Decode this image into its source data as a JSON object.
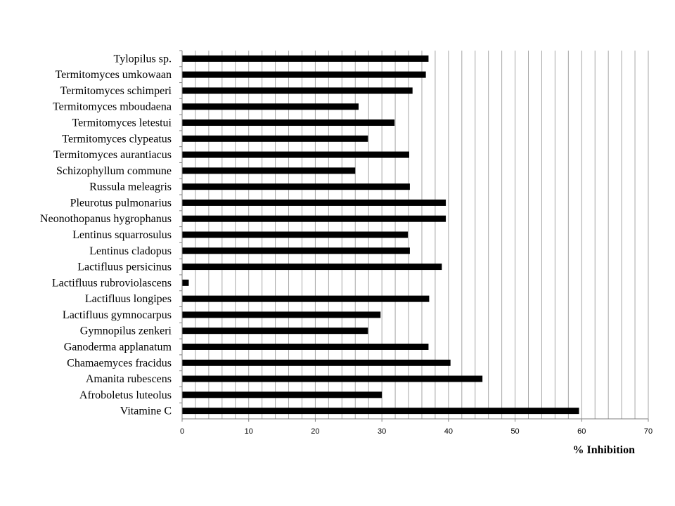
{
  "chart_data": {
    "type": "bar",
    "orientation": "horizontal",
    "xlabel": "% Inhibition",
    "ylabel": "",
    "xlim": [
      0,
      70
    ],
    "major_ticks": [
      0,
      10,
      20,
      30,
      40,
      50,
      60,
      70
    ],
    "minor_tick_step": 2,
    "grid": true,
    "bar_color": "#000000",
    "grid_color": "#a6a6a6",
    "categories": [
      "Tylopilus sp.",
      "Termitomyces umkowaan",
      "Termitomyces schimperi",
      "Termitomyces mboudaena",
      "Termitomyces letestui",
      "Termitomyces clypeatus",
      "Termitomyces aurantiacus",
      "Schizophyllum commune",
      "Russula meleagris",
      "Pleurotus pulmonarius",
      "Neonothopanus hygrophanus",
      "Lentinus squarrosulus",
      "Lentinus cladopus",
      "Lactifluus persicinus",
      "Lactifluus rubroviolascens",
      "Lactifluus longipes",
      "Lactifluus gymnocarpus",
      "Gymnopilus zenkeri",
      "Ganoderma applanatum",
      "Chamaemyces fracidus",
      "Amanita rubescens",
      "Afroboletus luteolus",
      "Vitamine C"
    ],
    "values": [
      37.0,
      36.6,
      34.6,
      26.5,
      31.9,
      27.9,
      34.1,
      26.0,
      34.2,
      39.6,
      39.6,
      33.9,
      34.2,
      39.0,
      1.0,
      37.1,
      29.8,
      27.9,
      37.0,
      40.3,
      45.1,
      30.0,
      59.6
    ]
  }
}
